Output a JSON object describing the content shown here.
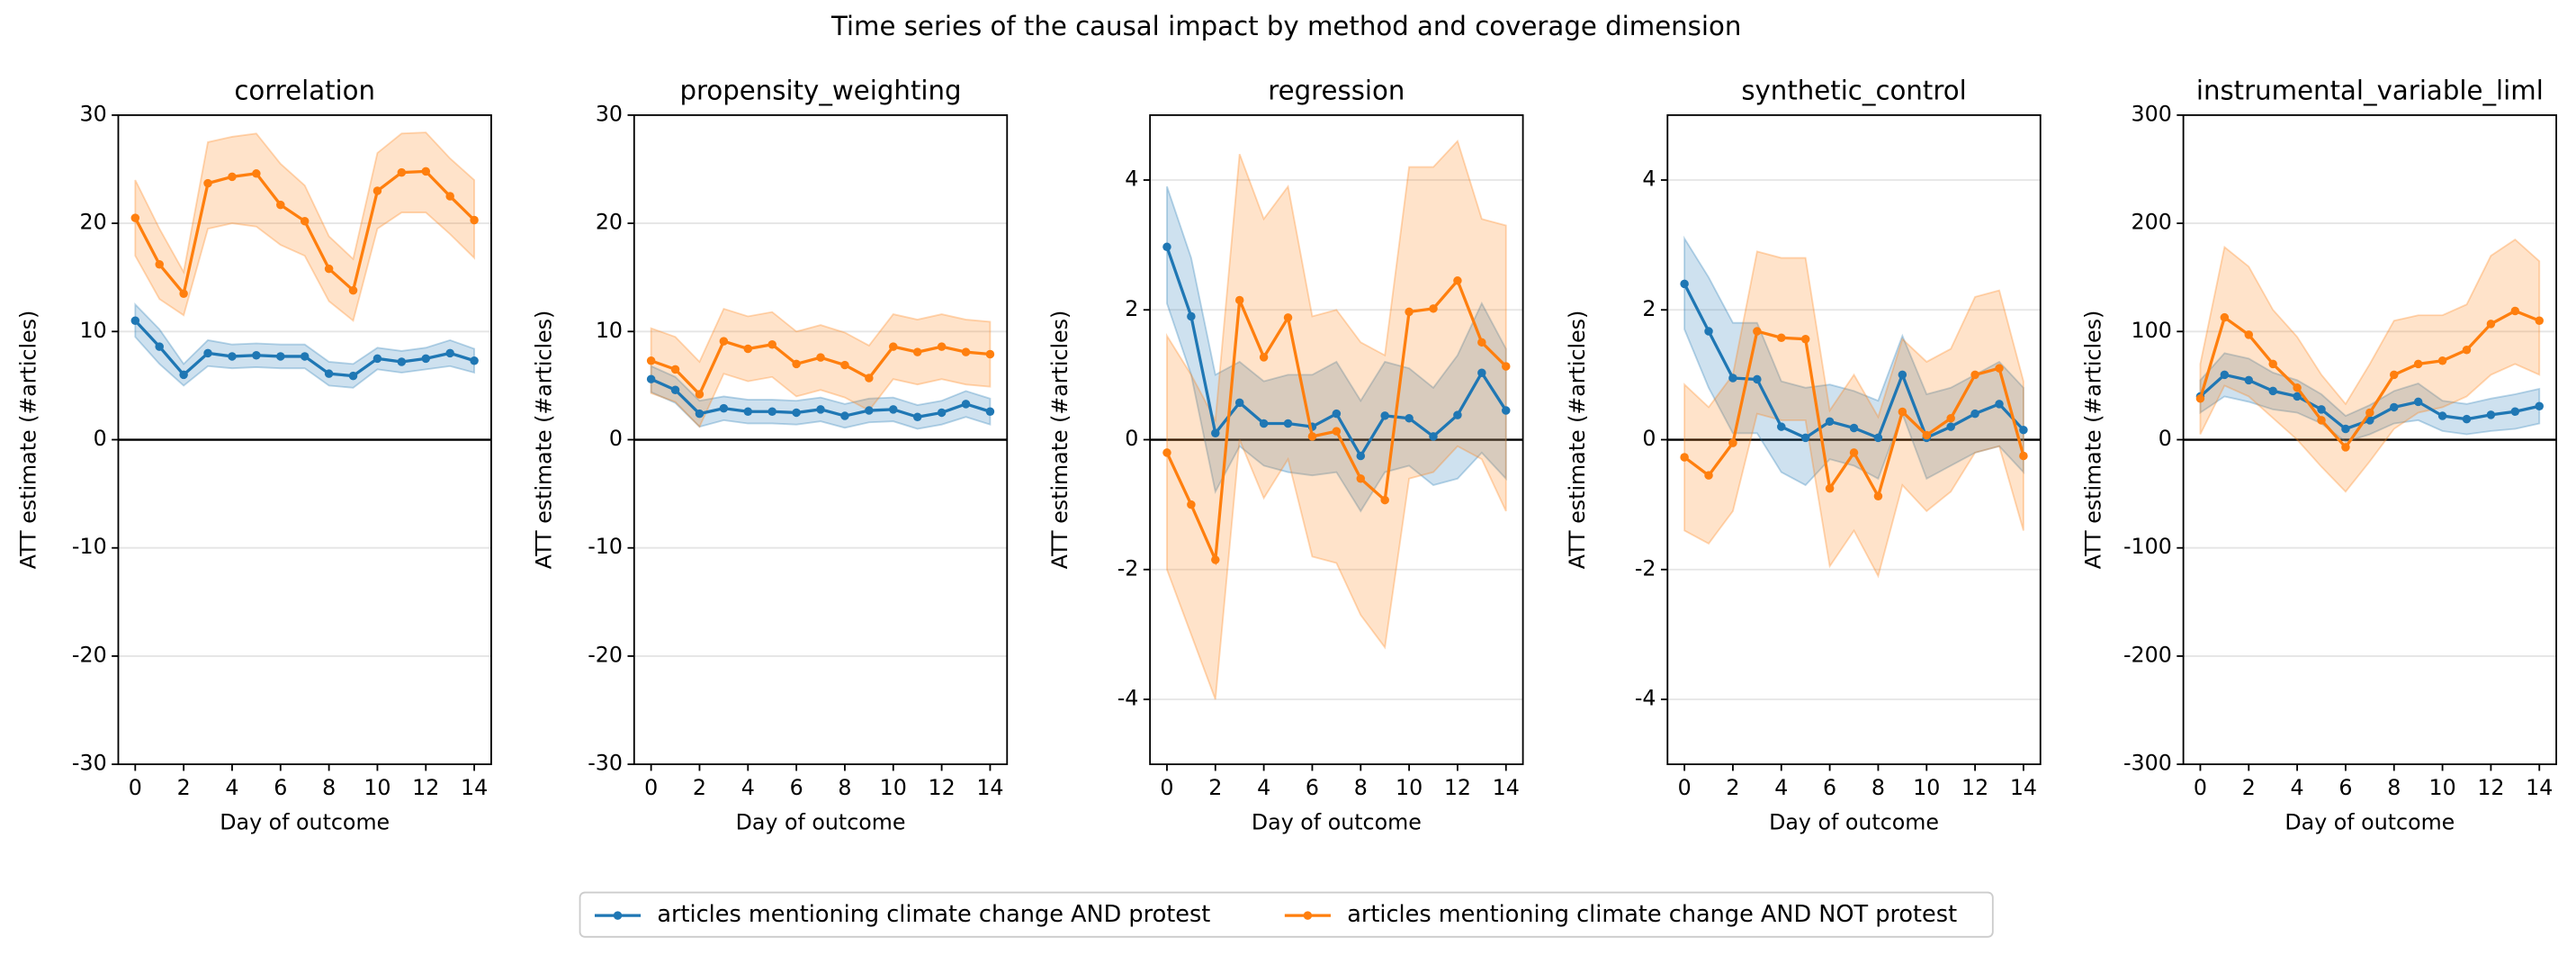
{
  "title": "Time series of the causal impact by method and coverage dimension",
  "chart_data": [
    {
      "type": "line",
      "title": "correlation",
      "x_label": "Day of outcome",
      "y_label": "ATT estimate (#articles)",
      "x": [
        0,
        1,
        2,
        3,
        4,
        5,
        6,
        7,
        8,
        9,
        10,
        11,
        12,
        13,
        14
      ],
      "xlim": [
        -0.7,
        14.7
      ],
      "xticks": [
        0,
        2,
        4,
        6,
        8,
        10,
        12,
        14
      ],
      "ylim": [
        -30,
        30
      ],
      "yticks": [
        -30,
        -20,
        -10,
        0,
        10,
        20,
        30
      ],
      "grid": true,
      "series": [
        {
          "name": "articles mentioning climate change AND protest",
          "color": "#1f77b4",
          "values": [
            11,
            8.6,
            6,
            8,
            7.7,
            7.8,
            7.7,
            7.7,
            6.1,
            5.9,
            7.5,
            7.2,
            7.5,
            8,
            7.3
          ],
          "lower": [
            9.5,
            7,
            5,
            6.8,
            6.6,
            6.7,
            6.6,
            6.6,
            5,
            4.8,
            6.5,
            6.2,
            6.5,
            6.8,
            6.2
          ],
          "upper": [
            12.5,
            10.2,
            7,
            9.2,
            8.8,
            8.9,
            8.8,
            8.8,
            7.2,
            7,
            8.5,
            8.2,
            8.5,
            9.2,
            8.4
          ]
        },
        {
          "name": "articles mentioning climate change AND NOT protest",
          "color": "#ff7f0e",
          "values": [
            20.5,
            16.2,
            13.5,
            23.7,
            24.3,
            24.6,
            21.7,
            20.2,
            15.8,
            13.8,
            23,
            24.7,
            24.8,
            22.5,
            20.3
          ],
          "lower": [
            17,
            13,
            11.5,
            19.5,
            20,
            19.7,
            18,
            17,
            12.8,
            11,
            19.5,
            21,
            21,
            19,
            16.8
          ],
          "upper": [
            24,
            19.5,
            15.5,
            27.5,
            28,
            28.3,
            25.5,
            23.5,
            18.8,
            16.7,
            26.5,
            28.3,
            28.4,
            26,
            24
          ]
        }
      ]
    },
    {
      "type": "line",
      "title": "propensity_weighting",
      "x_label": "Day of outcome",
      "y_label": "ATT estimate (#articles)",
      "x": [
        0,
        1,
        2,
        3,
        4,
        5,
        6,
        7,
        8,
        9,
        10,
        11,
        12,
        13,
        14
      ],
      "xlim": [
        -0.7,
        14.7
      ],
      "xticks": [
        0,
        2,
        4,
        6,
        8,
        10,
        12,
        14
      ],
      "ylim": [
        -30,
        30
      ],
      "yticks": [
        -30,
        -20,
        -10,
        0,
        10,
        20,
        30
      ],
      "grid": true,
      "series": [
        {
          "name": "articles mentioning climate change AND protest",
          "color": "#1f77b4",
          "values": [
            5.6,
            4.6,
            2.4,
            2.9,
            2.6,
            2.6,
            2.5,
            2.8,
            2.2,
            2.7,
            2.8,
            2.1,
            2.5,
            3.3,
            2.6
          ],
          "lower": [
            4.4,
            3.4,
            1.2,
            1.8,
            1.5,
            1.5,
            1.4,
            1.7,
            1.1,
            1.6,
            1.7,
            1,
            1.4,
            2.1,
            1.4
          ],
          "upper": [
            6.8,
            5.8,
            3.6,
            4,
            3.7,
            3.7,
            3.6,
            3.9,
            3.3,
            3.8,
            3.9,
            3.2,
            3.6,
            4.5,
            3.8
          ]
        },
        {
          "name": "articles mentioning climate change AND NOT protest",
          "color": "#ff7f0e",
          "values": [
            7.3,
            6.5,
            4.2,
            9.1,
            8.4,
            8.8,
            7,
            7.6,
            6.9,
            5.7,
            8.6,
            8.1,
            8.6,
            8.1,
            7.9
          ],
          "lower": [
            4.3,
            3.5,
            1.2,
            6.1,
            5.4,
            5.8,
            4,
            4.6,
            3.9,
            2.7,
            5.6,
            5.1,
            5.6,
            5.1,
            4.9
          ],
          "upper": [
            10.3,
            9.5,
            7.2,
            12.1,
            11.4,
            11.8,
            10,
            10.6,
            9.9,
            8.7,
            11.6,
            11.1,
            11.6,
            11.1,
            10.9
          ]
        }
      ]
    },
    {
      "type": "line",
      "title": "regression",
      "x_label": "Day of outcome",
      "y_label": "ATT estimate (#articles)",
      "x": [
        0,
        1,
        2,
        3,
        4,
        5,
        6,
        7,
        8,
        9,
        10,
        11,
        12,
        13,
        14
      ],
      "xlim": [
        -0.7,
        14.7
      ],
      "xticks": [
        0,
        2,
        4,
        6,
        8,
        10,
        12,
        14
      ],
      "ylim": [
        -5,
        5
      ],
      "yticks": [
        -4,
        -2,
        0,
        2,
        4
      ],
      "grid": true,
      "series": [
        {
          "name": "articles mentioning climate change AND protest",
          "color": "#1f77b4",
          "values": [
            2.97,
            1.9,
            0.1,
            0.57,
            0.25,
            0.25,
            0.2,
            0.4,
            -0.25,
            0.37,
            0.33,
            0.05,
            0.38,
            1.03,
            0.45
          ],
          "lower": [
            2.1,
            1,
            -0.8,
            -0.1,
            -0.4,
            -0.5,
            -0.55,
            -0.5,
            -1.1,
            -0.5,
            -0.4,
            -0.7,
            -0.6,
            -0.2,
            -0.6
          ],
          "upper": [
            3.9,
            2.8,
            1,
            1.2,
            0.9,
            1,
            1,
            1.2,
            0.6,
            1.2,
            1.1,
            0.8,
            1.3,
            2.1,
            1.4
          ]
        },
        {
          "name": "articles mentioning climate change AND NOT protest",
          "color": "#ff7f0e",
          "values": [
            -0.2,
            -1,
            -1.85,
            2.15,
            1.27,
            1.88,
            0.05,
            0.13,
            -0.6,
            -0.93,
            1.97,
            2.02,
            2.45,
            1.5,
            1.13
          ],
          "lower": [
            -2,
            -3,
            -4,
            0,
            -0.9,
            -0.3,
            -1.8,
            -1.9,
            -2.7,
            -3.2,
            -0.6,
            -0.5,
            -0.1,
            -0.3,
            -1.1
          ],
          "upper": [
            1.6,
            1,
            0.3,
            4.4,
            3.4,
            3.9,
            1.9,
            2,
            1.5,
            1.3,
            4.2,
            4.2,
            4.6,
            3.4,
            3.3
          ]
        }
      ]
    },
    {
      "type": "line",
      "title": "synthetic_control",
      "x_label": "Day of outcome",
      "y_label": "ATT estimate (#articles)",
      "x": [
        0,
        1,
        2,
        3,
        4,
        5,
        6,
        7,
        8,
        9,
        10,
        11,
        12,
        13,
        14
      ],
      "xlim": [
        -0.7,
        14.7
      ],
      "xticks": [
        0,
        2,
        4,
        6,
        8,
        10,
        12,
        14
      ],
      "ylim": [
        -5,
        5
      ],
      "yticks": [
        -4,
        -2,
        0,
        2,
        4
      ],
      "grid": true,
      "series": [
        {
          "name": "articles mentioning climate change AND protest",
          "color": "#1f77b4",
          "values": [
            2.4,
            1.67,
            0.95,
            0.93,
            0.2,
            0.03,
            0.28,
            0.18,
            0.03,
            1,
            0.03,
            0.2,
            0.4,
            0.55,
            0.15
          ],
          "lower": [
            1.7,
            0.8,
            0.1,
            0.1,
            -0.5,
            -0.7,
            -0.3,
            -0.4,
            -0.6,
            0.4,
            -0.6,
            -0.4,
            -0.2,
            -0.1,
            -0.5
          ],
          "upper": [
            3.1,
            2.5,
            1.8,
            1.8,
            0.9,
            0.8,
            0.85,
            0.75,
            0.6,
            1.6,
            0.7,
            0.8,
            1,
            1.2,
            0.8
          ]
        },
        {
          "name": "articles mentioning climate change AND NOT protest",
          "color": "#ff7f0e",
          "values": [
            -0.27,
            -0.55,
            -0.05,
            1.67,
            1.57,
            1.55,
            -0.75,
            -0.2,
            -0.87,
            0.43,
            0.07,
            0.33,
            1,
            1.1,
            -0.25
          ],
          "lower": [
            -1.4,
            -1.6,
            -1.1,
            0.4,
            0.3,
            0.3,
            -1.95,
            -1.4,
            -2.1,
            -0.7,
            -1.1,
            -0.8,
            -0.2,
            -0.1,
            -1.4
          ],
          "upper": [
            0.85,
            0.5,
            1,
            2.9,
            2.8,
            2.8,
            0.45,
            1,
            0.35,
            1.55,
            1.2,
            1.4,
            2.2,
            2.3,
            0.9
          ]
        }
      ]
    },
    {
      "type": "line",
      "title": "instrumental_variable_liml",
      "x_label": "Day of outcome",
      "y_label": "ATT estimate (#articles)",
      "x": [
        0,
        1,
        2,
        3,
        4,
        5,
        6,
        7,
        8,
        9,
        10,
        11,
        12,
        13,
        14
      ],
      "xlim": [
        -0.7,
        14.7
      ],
      "xticks": [
        0,
        2,
        4,
        6,
        8,
        10,
        12,
        14
      ],
      "ylim": [
        -300,
        300
      ],
      "yticks": [
        -300,
        -200,
        -100,
        0,
        100,
        200,
        300
      ],
      "grid": true,
      "series": [
        {
          "name": "articles mentioning climate change AND protest",
          "color": "#1f77b4",
          "values": [
            40,
            60,
            55,
            45,
            40,
            28,
            10,
            18,
            30,
            35,
            22,
            19,
            23,
            26,
            31
          ],
          "lower": [
            25,
            40,
            35,
            28,
            25,
            15,
            -2,
            5,
            15,
            18,
            8,
            5,
            8,
            10,
            15
          ],
          "upper": [
            55,
            80,
            75,
            62,
            55,
            42,
            22,
            32,
            45,
            52,
            36,
            33,
            38,
            42,
            47
          ]
        },
        {
          "name": "articles mentioning climate change AND NOT protest",
          "color": "#ff7f0e",
          "values": [
            38,
            113,
            97,
            70,
            48,
            18,
            -7,
            25,
            60,
            70,
            73,
            83,
            107,
            119,
            110
          ],
          "lower": [
            5,
            50,
            40,
            20,
            0,
            -25,
            -48,
            -20,
            10,
            25,
            30,
            40,
            60,
            70,
            60
          ],
          "upper": [
            70,
            178,
            160,
            120,
            95,
            60,
            33,
            70,
            110,
            115,
            115,
            125,
            170,
            185,
            165
          ]
        }
      ]
    }
  ]
}
